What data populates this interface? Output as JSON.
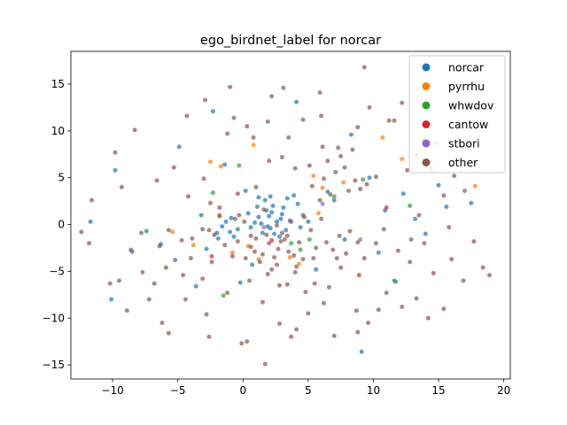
{
  "chart_data": {
    "type": "scatter",
    "title": "ego_birdnet_label for norcar",
    "xlabel": "",
    "ylabel": "",
    "xlim": [
      -13.2,
      20.5
    ],
    "ylim": [
      -16.5,
      18.5
    ],
    "xticks": [
      -10,
      -5,
      0,
      5,
      10,
      15,
      20
    ],
    "yticks": [
      -15,
      -10,
      -5,
      0,
      5,
      10,
      15
    ],
    "grid": false,
    "legend_position": "top-right",
    "series": [
      {
        "name": "norcar",
        "color": "#1f77b4",
        "points": [
          [
            1.2,
            0.8
          ],
          [
            1.8,
            1.5
          ],
          [
            2.1,
            -0.4
          ],
          [
            2.6,
            0.3
          ],
          [
            3.0,
            1.1
          ],
          [
            1.5,
            -0.9
          ],
          [
            2.3,
            2.0
          ],
          [
            3.3,
            -0.6
          ],
          [
            0.9,
            0.2
          ],
          [
            2.8,
            -1.3
          ],
          [
            1.1,
            1.9
          ],
          [
            3.6,
            0.4
          ],
          [
            2.0,
            0.9
          ],
          [
            0.6,
            -0.3
          ],
          [
            1.7,
            2.6
          ],
          [
            2.4,
            -1.0
          ],
          [
            3.1,
            1.8
          ],
          [
            1.4,
            0.1
          ],
          [
            2.9,
            0.6
          ],
          [
            0.4,
            1.2
          ],
          [
            1.9,
            -0.2
          ],
          [
            2.2,
            1.3
          ],
          [
            -1.0,
            -0.8
          ],
          [
            -1.6,
            -0.2
          ],
          [
            -0.7,
            -1.3
          ],
          [
            -2.0,
            -0.9
          ],
          [
            -1.3,
            0.3
          ],
          [
            -0.4,
            -0.5
          ],
          [
            -1.9,
            -1.5
          ],
          [
            -0.9,
            0.7
          ],
          [
            4.2,
            2.2
          ],
          [
            4.6,
            1.0
          ],
          [
            5.0,
            0.3
          ],
          [
            3.9,
            3.1
          ],
          [
            4.4,
            -0.3
          ],
          [
            6.5,
            3.5
          ],
          [
            7.0,
            2.6
          ],
          [
            -4.9,
            8.3
          ],
          [
            -9.8,
            5.8
          ],
          [
            -1.4,
            6.4
          ],
          [
            9.1,
            -13.6
          ],
          [
            10.4,
            -3.0
          ],
          [
            11.7,
            -6.1
          ],
          [
            12.3,
            3.3
          ],
          [
            14.0,
            -1.0
          ],
          [
            15.6,
            1.9
          ],
          [
            13.2,
            0.6
          ],
          [
            2.1,
            3.0
          ],
          [
            1.2,
            2.9
          ],
          [
            3.4,
            2.8
          ],
          [
            0.2,
            3.6
          ],
          [
            -5.2,
            -3.8
          ],
          [
            -6.3,
            -2.1
          ],
          [
            -2.8,
            -2.6
          ],
          [
            -3.6,
            -6.6
          ],
          [
            0.7,
            -4.3
          ],
          [
            -0.2,
            -6.2
          ],
          [
            5.6,
            -4.8
          ],
          [
            7.8,
            -1.6
          ],
          [
            9.7,
            5.0
          ],
          [
            10.9,
            1.5
          ],
          [
            -3.2,
            1.0
          ],
          [
            -7.4,
            -0.7
          ],
          [
            -8.6,
            -2.7
          ],
          [
            17.5,
            2.3
          ],
          [
            15.0,
            4.2
          ],
          [
            -11.7,
            0.3
          ],
          [
            -10.1,
            -8.0
          ],
          [
            8.3,
            9.6
          ],
          [
            4.1,
            13.1
          ],
          [
            -2.3,
            12.1
          ],
          [
            13.9,
            9.0
          ]
        ]
      },
      {
        "name": "pyrrhu",
        "color": "#ff7f0e",
        "points": [
          [
            0.8,
            8.5
          ],
          [
            -2.5,
            6.7
          ],
          [
            -1.7,
            6.2
          ],
          [
            5.4,
            5.2
          ],
          [
            6.1,
            3.9
          ],
          [
            4.3,
            -4.2
          ],
          [
            -3.8,
            -2.2
          ],
          [
            -1.8,
            1.0
          ],
          [
            10.7,
            9.3
          ],
          [
            7.7,
            4.5
          ],
          [
            3.6,
            -3.5
          ],
          [
            0.4,
            -2.3
          ],
          [
            1.2,
            -3.7
          ],
          [
            -5.4,
            -0.8
          ],
          [
            5.8,
            1.2
          ],
          [
            12.2,
            7.0
          ],
          [
            -0.8,
            -3.0
          ],
          [
            17.8,
            4.1
          ]
        ]
      },
      {
        "name": "whwdov",
        "color": "#2ca02c",
        "points": [
          [
            3.7,
            -2.0
          ],
          [
            5.1,
            -1.6
          ],
          [
            11.6,
            -6.0
          ],
          [
            -1.5,
            -7.6
          ],
          [
            -2.3,
            3.4
          ],
          [
            12.8,
            2.0
          ],
          [
            9.2,
            4.8
          ],
          [
            4.4,
            -2.7
          ],
          [
            -0.3,
            6.3
          ],
          [
            7.0,
            3.0
          ]
        ]
      },
      {
        "name": "cantow",
        "color": "#d62728",
        "points": [
          [
            8.9,
            -5.4
          ],
          [
            11.0,
            1.8
          ],
          [
            2.2,
            -1.7
          ],
          [
            -2.4,
            -3.4
          ]
        ]
      },
      {
        "name": "stbori",
        "color": "#9467bd",
        "points": [
          [
            9.0,
            -1.6
          ],
          [
            6.1,
            2.2
          ],
          [
            1.6,
            -0.3
          ]
        ]
      },
      {
        "name": "other",
        "color": "#8c564b",
        "points": [
          [
            2.0,
            -2.0
          ],
          [
            2.7,
            -2.6
          ],
          [
            1.5,
            -3.2
          ],
          [
            3.2,
            -1.6
          ],
          [
            1.0,
            -1.5
          ],
          [
            2.4,
            -3.5
          ],
          [
            3.5,
            -2.9
          ],
          [
            0.6,
            -2.4
          ],
          [
            1.8,
            -1.1
          ],
          [
            2.9,
            -1.8
          ],
          [
            0.2,
            -3.6
          ],
          [
            3.9,
            -3.3
          ],
          [
            1.3,
            -4.0
          ],
          [
            2.6,
            -4.3
          ],
          [
            4.3,
            -1.9
          ],
          [
            -0.4,
            -1.8
          ],
          [
            3.0,
            -0.9
          ],
          [
            0.9,
            -2.9
          ],
          [
            2.2,
            -4.8
          ],
          [
            4.6,
            -3.7
          ],
          [
            -0.8,
            -3.4
          ],
          [
            -1.4,
            -2.2
          ],
          [
            -2.2,
            -1.1
          ],
          [
            -0.6,
            0.6
          ],
          [
            -1.8,
            0.9
          ],
          [
            -2.6,
            -0.6
          ],
          [
            5.6,
            -2.5
          ],
          [
            6.4,
            -1.9
          ],
          [
            7.4,
            -1.2
          ],
          [
            8.2,
            -0.7
          ],
          [
            8.8,
            -1.9
          ],
          [
            6.9,
            -2.7
          ],
          [
            7.9,
            -3.1
          ],
          [
            5.3,
            4.1
          ],
          [
            6.2,
            4.9
          ],
          [
            7.1,
            5.6
          ],
          [
            7.8,
            6.1
          ],
          [
            8.6,
            4.7
          ],
          [
            9.5,
            4.3
          ],
          [
            6.7,
            3.2
          ],
          [
            5.9,
            2.6
          ],
          [
            8.1,
            3.6
          ],
          [
            10.2,
            5.1
          ],
          [
            9.0,
            3.8
          ],
          [
            7.5,
            7.3
          ],
          [
            6.5,
            6.8
          ],
          [
            8.4,
            8.0
          ],
          [
            5.5,
            -6.3
          ],
          [
            4.8,
            -7.2
          ],
          [
            6.2,
            -8.4
          ],
          [
            5.0,
            -9.5
          ],
          [
            8.7,
            -9.2
          ],
          [
            3.4,
            -6.4
          ],
          [
            1.5,
            -8.3
          ],
          [
            2.8,
            -10.6
          ],
          [
            0.3,
            -12.5
          ],
          [
            -1.2,
            -7.3
          ],
          [
            -2.8,
            -9.6
          ],
          [
            -4.4,
            -8.0
          ],
          [
            -6.8,
            -6.3
          ],
          [
            -7.7,
            -5.1
          ],
          [
            -5.9,
            -4.6
          ],
          [
            -9.5,
            -6.0
          ],
          [
            -10.2,
            -6.3
          ],
          [
            -8.5,
            -2.9
          ],
          [
            -7.8,
            -0.9
          ],
          [
            -11.6,
            2.6
          ],
          [
            -9.3,
            4.0
          ],
          [
            -6.6,
            4.7
          ],
          [
            -5.3,
            6.1
          ],
          [
            -4.2,
            3.0
          ],
          [
            -3.0,
            4.9
          ],
          [
            -9.8,
            7.7
          ],
          [
            -8.3,
            10.1
          ],
          [
            -5.7,
            -0.6
          ],
          [
            -3.9,
            -1.5
          ],
          [
            -4.6,
            -5.4
          ],
          [
            -3.1,
            -5.8
          ],
          [
            -11.8,
            -2.0
          ],
          [
            -12.4,
            -0.8
          ],
          [
            0.3,
            10.5
          ],
          [
            0.8,
            9.3
          ],
          [
            1.9,
            11.0
          ],
          [
            -1.2,
            9.7
          ],
          [
            -0.7,
            11.4
          ],
          [
            3.5,
            9.3
          ],
          [
            4.6,
            11.2
          ],
          [
            3.1,
            14.6
          ],
          [
            2.2,
            13.7
          ],
          [
            -4.3,
            11.6
          ],
          [
            -2.9,
            13.3
          ],
          [
            -1.0,
            14.7
          ],
          [
            8.8,
            10.4
          ],
          [
            9.3,
            16.8
          ],
          [
            11.6,
            11.1
          ],
          [
            12.2,
            13.0
          ],
          [
            13.3,
            7.4
          ],
          [
            14.8,
            8.7
          ],
          [
            12.6,
            5.8
          ],
          [
            14.4,
            6.0
          ],
          [
            16.2,
            5.2
          ],
          [
            17.0,
            3.6
          ],
          [
            15.4,
            3.1
          ],
          [
            13.5,
            1.0
          ],
          [
            15.8,
            -0.3
          ],
          [
            13.9,
            -2.0
          ],
          [
            16.0,
            -3.7
          ],
          [
            14.6,
            -5.2
          ],
          [
            12.8,
            -4.0
          ],
          [
            11.9,
            -2.8
          ],
          [
            16.9,
            -6.0
          ],
          [
            18.4,
            -4.6
          ],
          [
            17.7,
            -1.8
          ],
          [
            18.9,
            -5.4
          ],
          [
            11.0,
            -7.3
          ],
          [
            10.4,
            -9.1
          ],
          [
            12.2,
            -8.8
          ],
          [
            13.3,
            -7.9
          ],
          [
            14.2,
            -10.0
          ],
          [
            15.4,
            -9.0
          ],
          [
            9.6,
            -10.5
          ],
          [
            8.8,
            -11.5
          ],
          [
            7.0,
            -11.9
          ],
          [
            4.1,
            -11.2
          ],
          [
            3.7,
            -12.0
          ],
          [
            1.7,
            -14.9
          ],
          [
            -0.1,
            -12.7
          ],
          [
            -2.6,
            -12.0
          ],
          [
            -5.7,
            -11.6
          ],
          [
            -6.2,
            -10.5
          ],
          [
            -8.9,
            -9.2
          ],
          [
            -7.2,
            -8.0
          ],
          [
            -4.0,
            -3.6
          ],
          [
            -2.4,
            -4.0
          ],
          [
            0.5,
            -6.0
          ],
          [
            1.9,
            -5.3
          ],
          [
            2.8,
            -6.5
          ],
          [
            4.0,
            -5.1
          ],
          [
            6.6,
            -6.7
          ],
          [
            7.5,
            -4.6
          ],
          [
            9.3,
            -3.6
          ],
          [
            10.2,
            -2.0
          ],
          [
            10.8,
            -0.5
          ],
          [
            12.9,
            -1.6
          ],
          [
            7.2,
            -3.6
          ],
          [
            5.2,
            -0.6
          ],
          [
            4.7,
            0.8
          ],
          [
            6.0,
            0.6
          ],
          [
            3.7,
            0.3
          ],
          [
            1.0,
            4.0
          ],
          [
            -0.4,
            3.3
          ],
          [
            -2.5,
            2.3
          ],
          [
            0.1,
            0.3
          ],
          [
            -3.1,
            -0.5
          ],
          [
            -4.7,
            -1.7
          ],
          [
            -6.4,
            -2.3
          ],
          [
            2.0,
            6.8
          ],
          [
            3.0,
            7.2
          ],
          [
            4.0,
            6.0
          ],
          [
            5.1,
            6.3
          ],
          [
            6.1,
            8.3
          ],
          [
            7.3,
            8.2
          ],
          [
            6.0,
            11.6
          ],
          [
            9.7,
            12.5
          ],
          [
            11.2,
            11.1
          ],
          [
            5.9,
            14.1
          ],
          [
            -1.8,
            1.8
          ],
          [
            1.6,
            1.6
          ],
          [
            0.6,
            -1.2
          ],
          [
            3.4,
            -1.2
          ],
          [
            2.6,
            -0.1
          ],
          [
            -0.3,
            1.0
          ],
          [
            4.1,
            -4.5
          ],
          [
            5.4,
            -3.6
          ]
        ]
      }
    ]
  }
}
